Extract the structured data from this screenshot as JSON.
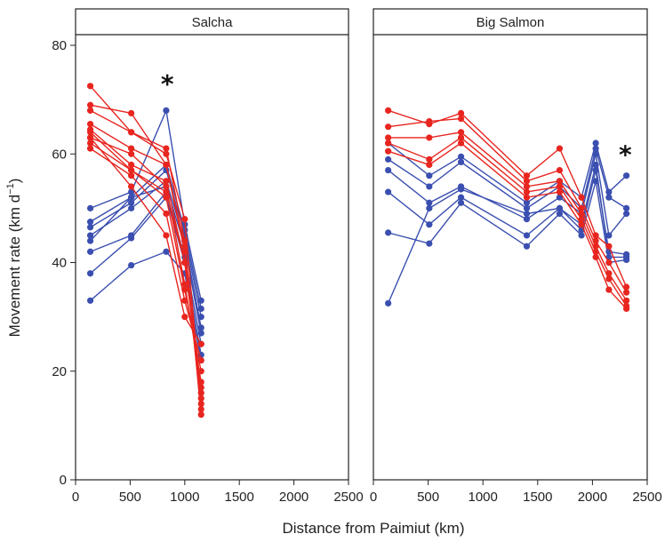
{
  "chart_data": {
    "type": "line",
    "xlabel": "Distance from Paimiut (km)",
    "ylabel_main": "Movement rate (km d",
    "ylabel_sup": "−1",
    "ylabel_close": ")",
    "xlim": [
      0,
      2500
    ],
    "ylim": [
      0,
      80
    ],
    "x_ticks": [
      0,
      500,
      1000,
      1500,
      2000,
      2500
    ],
    "x_tick_labels": [
      "0",
      "500",
      "1000",
      "1500",
      "2000",
      "2500"
    ],
    "y_ticks": [
      0,
      20,
      40,
      60,
      80
    ],
    "y_tick_labels": [
      "0",
      "20",
      "40",
      "60",
      "80"
    ],
    "colors": {
      "red": "#e8251f",
      "blue": "#3a4fb0"
    },
    "grid": false,
    "legend": "none",
    "panels": [
      {
        "title": "Salcha",
        "annotation": {
          "text": "*",
          "x": 840,
          "y": 73
        },
        "red_x": [
          135,
          510,
          830,
          1000,
          1150
        ],
        "red_series": [
          [
            72.5,
            64,
            61,
            44,
            12
          ],
          [
            69,
            67.5,
            58,
            42,
            13
          ],
          [
            68,
            64,
            60,
            48,
            14
          ],
          [
            65.5,
            61,
            58,
            43,
            15
          ],
          [
            64.5,
            58,
            55,
            40,
            16
          ],
          [
            64,
            57,
            53,
            40,
            17
          ],
          [
            63,
            60,
            54,
            36,
            18
          ],
          [
            62,
            57,
            52,
            35,
            20
          ],
          [
            61,
            56,
            49,
            33,
            22
          ],
          [
            63,
            54,
            45,
            30,
            25
          ]
        ],
        "blue_x": [
          135,
          510,
          830,
          1000,
          1150
        ],
        "blue_series": [
          [
            50,
            53,
            68,
            47,
            33
          ],
          [
            47.5,
            52,
            58,
            46,
            31.5
          ],
          [
            46.5,
            51,
            57,
            45,
            30
          ],
          [
            45,
            50,
            55,
            44,
            28
          ],
          [
            44,
            52,
            54,
            43,
            27
          ],
          [
            42,
            45,
            53,
            41,
            25
          ],
          [
            38,
            44.5,
            52,
            40,
            23
          ],
          [
            33,
            39.5,
            42,
            38,
            22
          ]
        ]
      },
      {
        "title": "Big Salmon",
        "annotation": {
          "text": "*",
          "x": 2300,
          "y": 60
        },
        "red_x": [
          135,
          510,
          800,
          1400,
          1700,
          1900,
          2030,
          2150,
          2310
        ],
        "red_series": [
          [
            68,
            65.5,
            67.5,
            56,
            61,
            52,
            45,
            43,
            35.5
          ],
          [
            65,
            66,
            66.5,
            55,
            57,
            50,
            44,
            40,
            34.5
          ],
          [
            63,
            63,
            64,
            54,
            55,
            49,
            43,
            38,
            33
          ],
          [
            62,
            59,
            63,
            53,
            54,
            48,
            42,
            37,
            32
          ],
          [
            60.5,
            58,
            62,
            52,
            53,
            47,
            41,
            35,
            31.5
          ]
        ],
        "blue_x": [
          135,
          510,
          800,
          1400,
          1700,
          1900,
          2030,
          2150,
          2310
        ],
        "blue_series": [
          [
            62,
            56,
            59.5,
            51,
            55,
            52,
            62,
            53,
            56
          ],
          [
            59,
            54,
            58.5,
            50,
            54,
            50,
            61,
            52,
            50
          ],
          [
            57,
            51,
            54,
            48,
            52,
            49,
            60,
            45,
            49
          ],
          [
            53,
            47,
            52,
            45,
            50,
            47,
            58,
            41,
            41
          ],
          [
            45.5,
            43.5,
            51,
            43,
            49,
            45,
            55,
            40,
            40.5
          ],
          [
            32.5,
            50,
            53.5,
            49,
            50,
            46,
            57,
            42,
            41.5
          ]
        ]
      }
    ]
  }
}
